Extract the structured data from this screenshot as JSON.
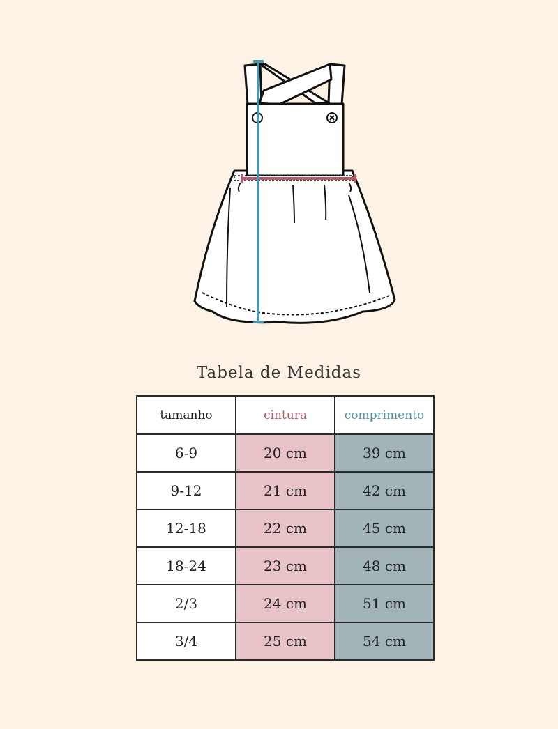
{
  "title": "Tabela de Medidas",
  "colors": {
    "background": "#fcf3e6",
    "waist": "#b55a68",
    "waist_fill": "#e8c3c8",
    "length": "#4f97a8",
    "length_fill": "#a3b4b9"
  },
  "table": {
    "headers": [
      "tamanho",
      "cintura",
      "comprimento"
    ],
    "rows": [
      [
        "6-9",
        "20 cm",
        "39 cm"
      ],
      [
        "9-12",
        "21 cm",
        "42 cm"
      ],
      [
        "12-18",
        "22 cm",
        "45 cm"
      ],
      [
        "18-24",
        "23 cm",
        "48 cm"
      ],
      [
        "2/3",
        "24 cm",
        "51 cm"
      ],
      [
        "3/4",
        "25 cm",
        "54 cm"
      ]
    ]
  }
}
